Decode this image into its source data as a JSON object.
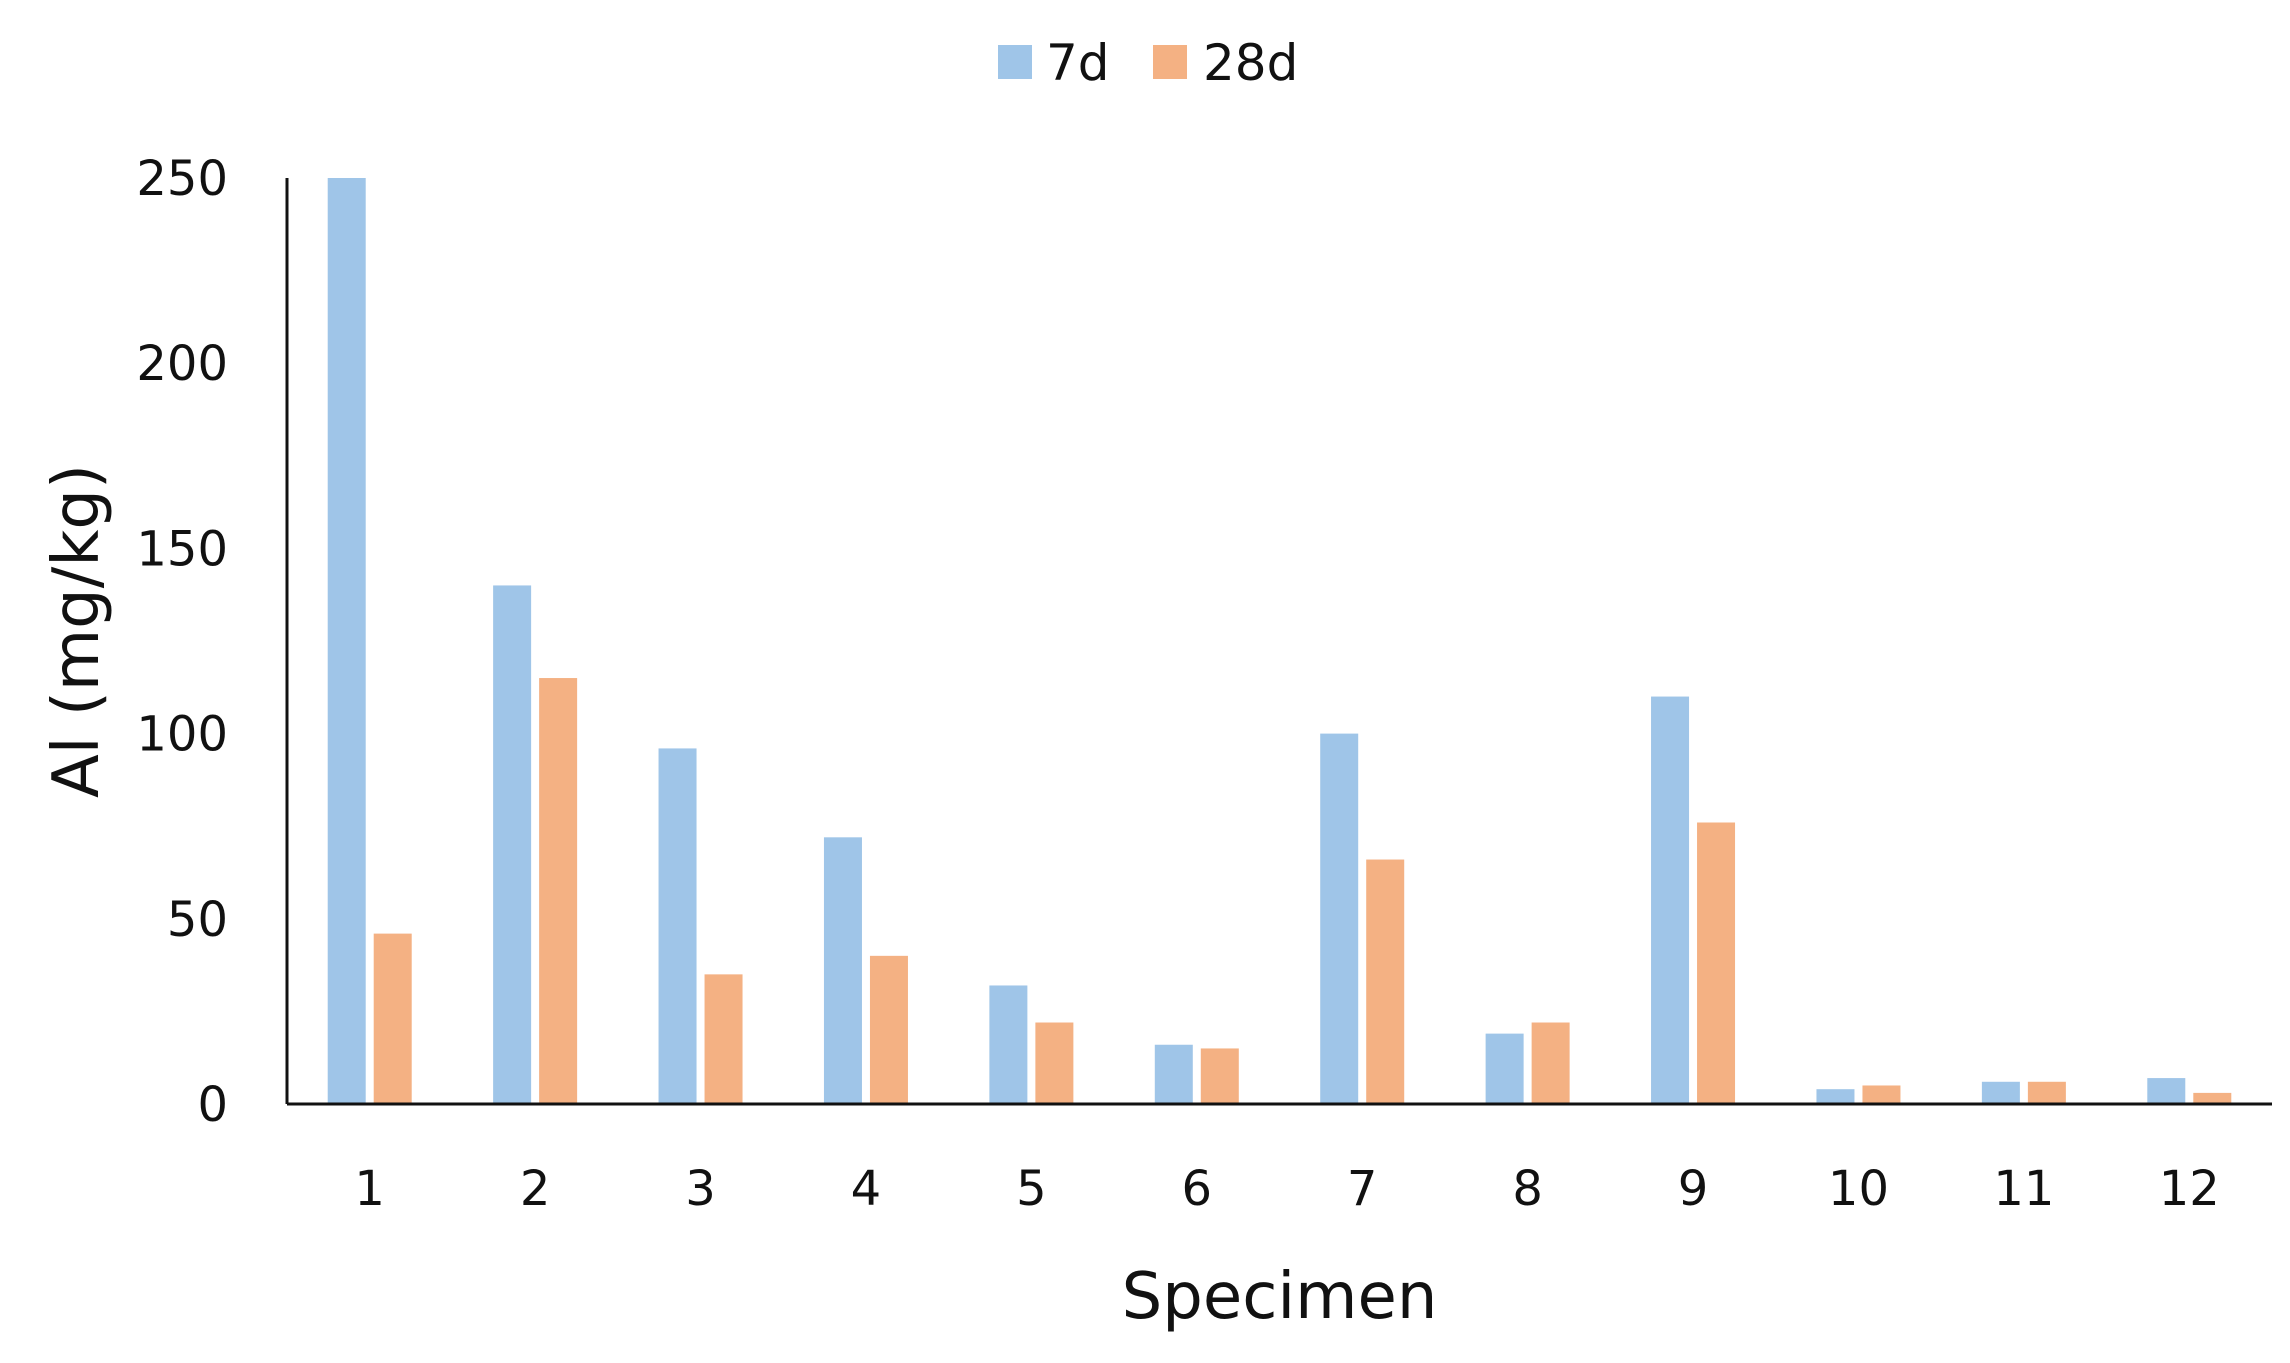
{
  "chart_data": {
    "type": "bar",
    "categories": [
      "1",
      "2",
      "3",
      "4",
      "5",
      "6",
      "7",
      "8",
      "9",
      "10",
      "11",
      "12"
    ],
    "series": [
      {
        "name": "7d",
        "values": [
          250,
          140,
          96,
          72,
          32,
          16,
          100,
          19,
          110,
          4,
          6,
          7
        ],
        "color": "#9fc5e8"
      },
      {
        "name": "28d",
        "values": [
          46,
          115,
          35,
          40,
          22,
          15,
          66,
          22,
          76,
          5,
          6,
          3
        ],
        "color": "#f4b183"
      }
    ],
    "title": "",
    "xlabel": "Specimen",
    "ylabel": "Al (mg/kg)",
    "ylim": [
      0,
      250
    ],
    "yticks": [
      "0",
      "50",
      "100",
      "150",
      "200",
      "250"
    ],
    "grid": false,
    "legend_position": "top-center"
  }
}
